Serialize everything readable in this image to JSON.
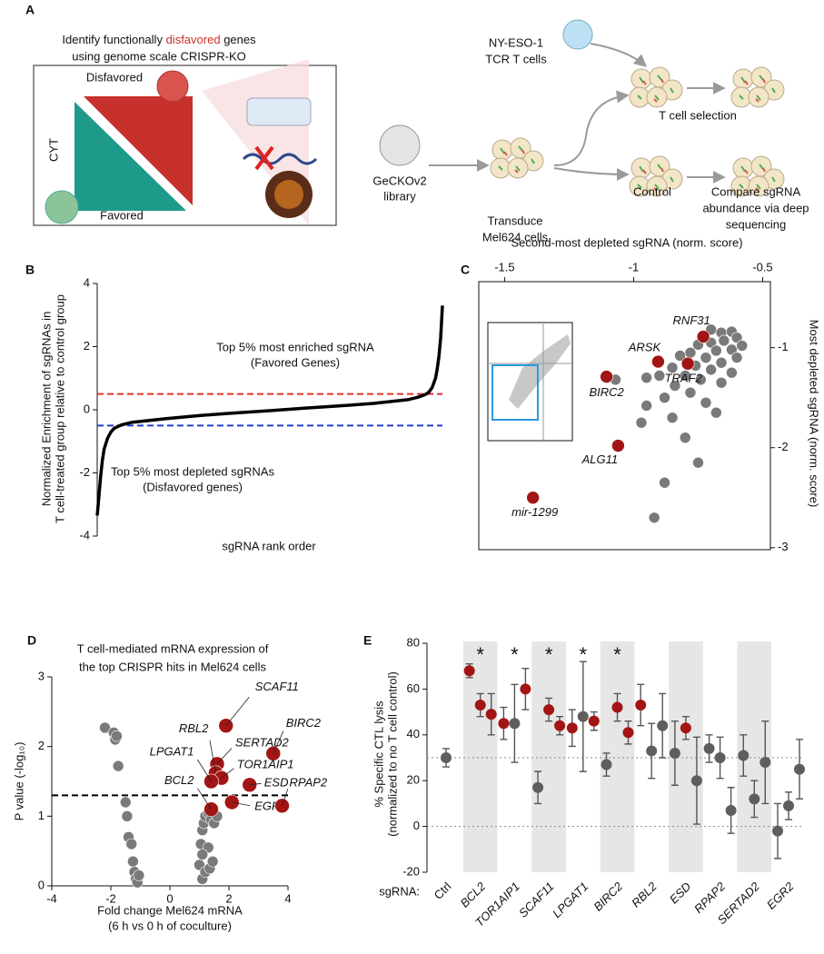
{
  "diagram": {
    "panel": "A",
    "title_line1": {
      "before": "Identify functionally",
      "highlight": "disfavored",
      "after": "genes"
    },
    "title_line2": "using genome scale CRISPR-KO",
    "disfavored_label": "Disfavored",
    "axis_label": "CYT",
    "favored_label": "Favored",
    "t_cells": [
      "NY-ESO-1",
      "TCR T cells"
    ],
    "library": [
      "GeCKOv2",
      "library"
    ],
    "transduce": [
      "Transduce",
      "Mel624 cells"
    ],
    "selection": "T cell selection",
    "control": "Control",
    "compare": [
      "Compare sgRNA",
      "abundance via deep",
      "sequencing"
    ]
  },
  "chart_data": [
    {
      "panel": "B",
      "type": "line",
      "y_label": [
        "Normalized Enrichment of sgRNAs in",
        "T cell-treated group relative to control group"
      ],
      "x_label": "sgRNA rank order",
      "x": [
        0,
        0.3,
        0.6,
        1,
        1.5,
        2,
        3,
        4,
        5,
        7,
        10,
        20,
        30,
        40,
        50,
        60,
        70,
        80,
        90,
        93,
        95,
        96,
        97,
        98,
        98.5,
        99,
        99.5,
        100
      ],
      "values": [
        -3.35,
        -3.0,
        -2.6,
        -2.1,
        -1.6,
        -1.25,
        -0.9,
        -0.7,
        -0.58,
        -0.48,
        -0.4,
        -0.28,
        -0.18,
        -0.1,
        -0.03,
        0.05,
        0.12,
        0.2,
        0.32,
        0.4,
        0.48,
        0.55,
        0.7,
        1.0,
        1.3,
        1.7,
        2.3,
        3.3
      ],
      "color": "#000000",
      "xlim": [
        0,
        100
      ],
      "ylim": [
        -4,
        4
      ],
      "yticks": [
        -4,
        -2,
        0,
        2,
        4
      ],
      "hlines": [
        {
          "value": 0.5,
          "color": "#e8302a"
        },
        {
          "value": -0.5,
          "color": "#1f3fd6"
        }
      ],
      "annotations": [
        {
          "text": [
            "Top 5% most enriched sgRNA",
            "(Favored Genes)"
          ],
          "color": "#3a5a1a"
        },
        {
          "text": [
            "Top 5% most depleted sgRNAs",
            "(Disfavored genes)"
          ],
          "color": "#c0201a"
        }
      ]
    },
    {
      "panel": "C",
      "type": "scatter",
      "x_label": "Second-most depleted sgRNA (norm. score)",
      "y_label": "Most depleted sgRNA (norm. score)",
      "xlim": [
        -1.6,
        -0.47
      ],
      "ylim": [
        -3.02,
        -0.34
      ],
      "xticks": [
        -1.5,
        -1,
        -0.5
      ],
      "yticks": [
        -1,
        -2,
        -3
      ],
      "series": [
        {
          "color": "#7a7a7a",
          "x": [
            -0.7,
            -0.66,
            -0.62,
            -0.6,
            -0.65,
            -0.7,
            -0.75,
            -0.58,
            -0.62,
            -0.68,
            -0.78,
            -0.82,
            -0.72,
            -0.6,
            -0.66,
            -0.76,
            -0.85,
            -0.7,
            -0.62,
            -0.8,
            -0.9,
            -0.74,
            -0.66,
            -0.84,
            -0.95,
            -1.07,
            -0.78,
            -0.88,
            -0.95,
            -0.72,
            -0.85,
            -0.97,
            -0.8,
            -0.75,
            -0.88,
            -0.92,
            -0.68
          ],
          "values": [
            -0.82,
            -0.85,
            -0.84,
            -0.9,
            -0.93,
            -0.95,
            -0.97,
            -0.98,
            -1.02,
            -1.03,
            -1.05,
            -1.08,
            -1.1,
            -1.1,
            -1.15,
            -1.18,
            -1.2,
            -1.22,
            -1.25,
            -1.28,
            -1.28,
            -1.32,
            -1.35,
            -1.38,
            -1.3,
            -1.32,
            -1.45,
            -1.5,
            -1.58,
            -1.55,
            -1.7,
            -1.75,
            -1.9,
            -2.15,
            -2.35,
            -2.7,
            -1.65
          ]
        },
        {
          "color": "#a31515",
          "x": [
            -0.73,
            -0.905,
            -0.79,
            -1.105,
            -1.06,
            -1.39
          ],
          "values": [
            -0.89,
            -1.14,
            -1.16,
            -1.29,
            -1.98,
            -2.5
          ],
          "labels": [
            "RNF31",
            "ARSK",
            "TRAF2",
            "BIRC2",
            "ALG11",
            "mir-1299"
          ]
        }
      ]
    },
    {
      "panel": "D",
      "type": "scatter",
      "title": [
        "T cell-mediated mRNA expression of",
        "the top CRISPR hits in Mel624 cells"
      ],
      "x_label": [
        "Fold change Mel624 mRNA",
        "(6 h vs 0 h of coculture)"
      ],
      "y_label": "P value (-log₁₀)",
      "xlim": [
        -4,
        4
      ],
      "ylim": [
        0,
        3
      ],
      "xticks": [
        -4,
        -2,
        0,
        2,
        4
      ],
      "yticks": [
        0,
        1,
        2,
        3
      ],
      "hlines": [
        {
          "value": 1.3,
          "color": "#000000"
        }
      ],
      "series": [
        {
          "color": "#7a7a7a",
          "x": [
            -2.2,
            -1.9,
            -1.85,
            -1.75,
            -1.8,
            -1.5,
            -1.45,
            -1.4,
            -1.3,
            -1.25,
            -1.2,
            -1.15,
            -1.1,
            -1.05,
            1.0,
            1.05,
            1.1,
            1.15,
            1.2,
            1.3,
            1.4,
            1.5,
            1.6,
            1.1,
            1.2,
            1.35,
            1.45,
            1.3,
            1.1
          ],
          "values": [
            2.27,
            2.2,
            2.1,
            1.72,
            2.15,
            1.2,
            1.0,
            0.7,
            0.6,
            0.35,
            0.2,
            0.1,
            0.05,
            0.15,
            0.3,
            0.6,
            0.8,
            0.9,
            1.0,
            1.05,
            0.95,
            0.9,
            1.0,
            0.1,
            0.2,
            0.25,
            0.35,
            0.55,
            0.45
          ]
        },
        {
          "color": "#a31515",
          "x": [
            1.9,
            3.5,
            1.6,
            1.55,
            1.75,
            1.4,
            2.7,
            2.1,
            1.4,
            3.8
          ],
          "values": [
            2.3,
            1.9,
            1.75,
            1.62,
            1.55,
            1.5,
            1.45,
            1.2,
            1.1,
            1.15
          ],
          "labels": [
            "SCAF11",
            "BIRC2",
            "SERTAD2",
            "RBL2",
            "TOR1AIP1",
            "LPGAT1",
            "ESD",
            "EGR2",
            "BCL2",
            "RPAP2"
          ]
        }
      ]
    },
    {
      "panel": "E",
      "type": "dot",
      "y_label": [
        "% Specific CTL lysis",
        "(normalized to no T cell control)"
      ],
      "x_label": "sgRNA:",
      "categories": [
        "Ctrl",
        "BCL2",
        "TOR1AIP1",
        "SCAF11",
        "LPGAT1",
        "BIRC2",
        "RBL2",
        "ESD",
        "RPAP2",
        "SERTAD2",
        "EGR2"
      ],
      "ylim": [
        -20,
        80
      ],
      "yticks": [
        -20,
        0,
        20,
        40,
        60,
        80
      ],
      "hlines": [
        {
          "value": 30,
          "color": "#8a8a8a"
        },
        {
          "value": 0,
          "color": "#8a8a8a"
        }
      ],
      "shaded": [
        false,
        true,
        false,
        true,
        false,
        true,
        false,
        true,
        false,
        true,
        false
      ],
      "significance": [
        null,
        "*",
        "*",
        "*",
        "*",
        "*",
        null,
        null,
        null,
        null,
        null
      ],
      "series": [
        {
          "values": [
            30,
            68,
            45,
            17,
            43,
            27,
            53,
            32,
            34,
            31,
            -2
          ],
          "errors": [
            4,
            3,
            7,
            7,
            8,
            5,
            9,
            14,
            6,
            9,
            12
          ],
          "colors": [
            "#5e5e5e",
            "#a31515",
            "#a31515",
            "#5e5e5e",
            "#a31515",
            "#5e5e5e",
            "#a31515",
            "#5e5e5e",
            "#5e5e5e",
            "#5e5e5e",
            "#5e5e5e"
          ]
        },
        {
          "values": [
            null,
            53,
            45,
            51,
            48,
            52,
            33,
            43,
            30,
            12,
            9
          ],
          "errors": [
            null,
            5,
            17,
            5,
            24,
            6,
            12,
            5,
            9,
            8,
            6
          ],
          "colors": [
            null,
            "#a31515",
            "#5e5e5e",
            "#a31515",
            "#5e5e5e",
            "#a31515",
            "#5e5e5e",
            "#a31515",
            "#5e5e5e",
            "#5e5e5e",
            "#5e5e5e"
          ]
        },
        {
          "values": [
            null,
            49,
            60,
            44,
            46,
            41,
            44,
            20,
            7,
            28,
            25
          ],
          "errors": [
            null,
            9,
            9,
            4,
            4,
            5,
            14,
            19,
            10,
            18,
            13
          ],
          "colors": [
            null,
            "#a31515",
            "#a31515",
            "#a31515",
            "#a31515",
            "#a31515",
            "#5e5e5e",
            "#5e5e5e",
            "#5e5e5e",
            "#5e5e5e",
            "#5e5e5e"
          ]
        }
      ]
    }
  ]
}
